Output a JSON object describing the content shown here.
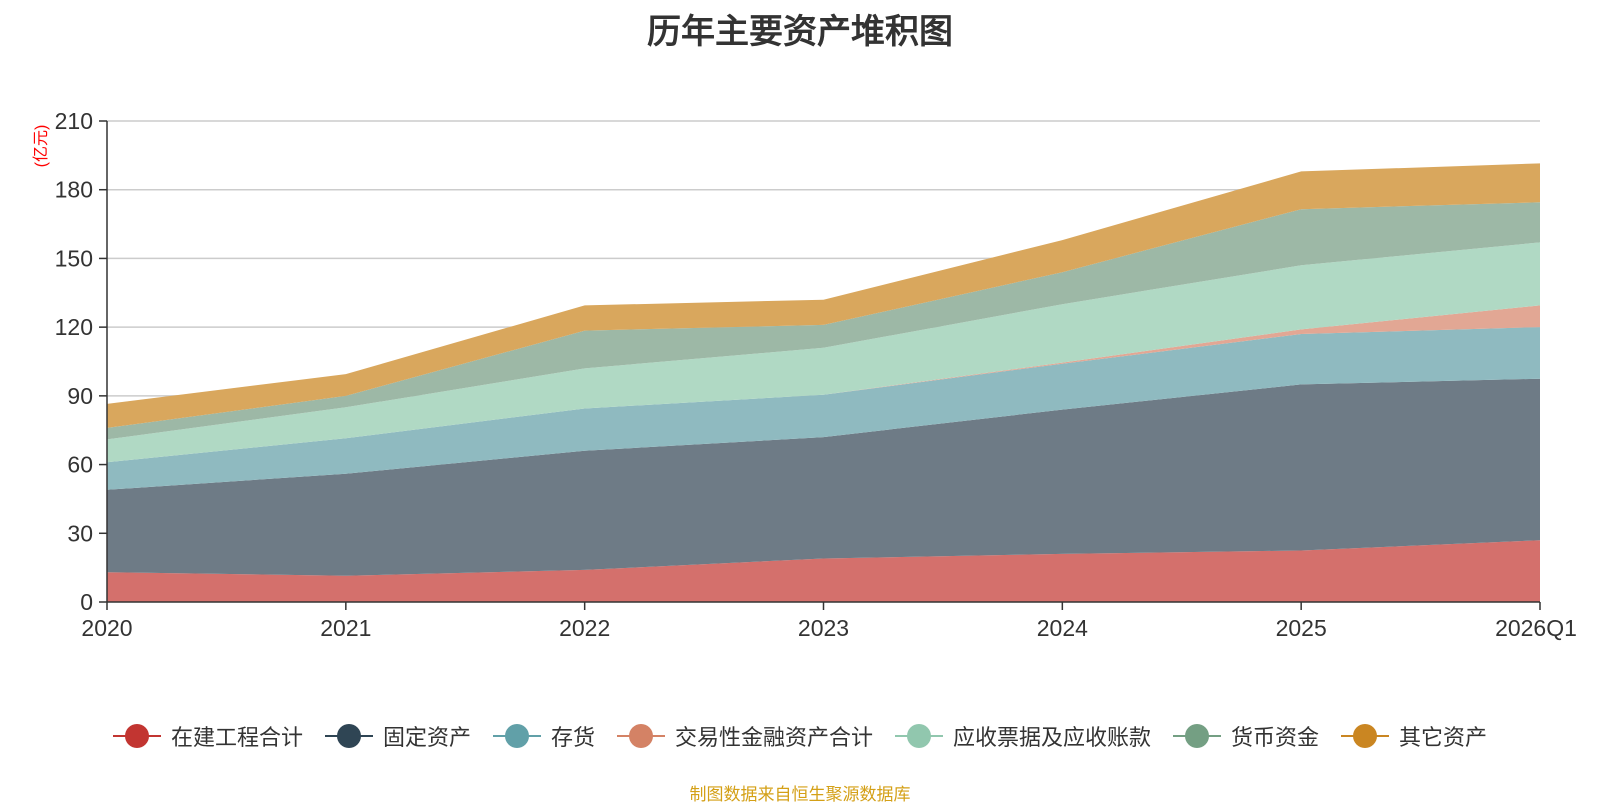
{
  "chart_data": {
    "type": "area",
    "stacked": true,
    "title": "历年主要资产堆积图",
    "ylabel": "(亿元)",
    "xlabel": "",
    "ylim": [
      0,
      210
    ],
    "yticks": [
      0,
      30,
      60,
      90,
      120,
      150,
      180,
      210
    ],
    "categories": [
      "2020",
      "2021",
      "2022",
      "2023",
      "2024",
      "2025",
      "2026Q1"
    ],
    "grid": true,
    "legend_position": "bottom",
    "series": [
      {
        "name": "在建工程合计",
        "color": "#c23531",
        "fill": "#d4706c",
        "values": [
          13,
          11.5,
          14,
          19,
          21,
          22.5,
          27
        ]
      },
      {
        "name": "固定资产",
        "color": "#2f4554",
        "fill": "#6e7b86",
        "values": [
          36,
          44.5,
          52,
          53,
          63,
          72.5,
          70.5
        ]
      },
      {
        "name": "存货",
        "color": "#61a0a8",
        "fill": "#8fbac0",
        "values": [
          12,
          15.5,
          18.5,
          18.5,
          20,
          22,
          22.5
        ]
      },
      {
        "name": "交易性金融资产合计",
        "color": "#d48265",
        "fill": "#e2a794",
        "values": [
          0,
          0,
          0,
          0,
          0.5,
          2,
          9.5
        ]
      },
      {
        "name": "应收票据及应收账款",
        "color": "#91c7ae",
        "fill": "#b0d9c4",
        "values": [
          10,
          13.5,
          17.5,
          20.5,
          25.5,
          28,
          27.5
        ]
      },
      {
        "name": "货币资金",
        "color": "#749f83",
        "fill": "#9db8a6",
        "values": [
          5,
          5,
          16.5,
          10,
          14,
          24.5,
          17.5
        ]
      },
      {
        "name": "其它资产",
        "color": "#ca8622",
        "fill": "#d9a75d",
        "values": [
          10.5,
          9.5,
          11,
          11,
          14,
          16.5,
          17
        ]
      }
    ]
  },
  "source_note": "制图数据来自恒生聚源数据库"
}
